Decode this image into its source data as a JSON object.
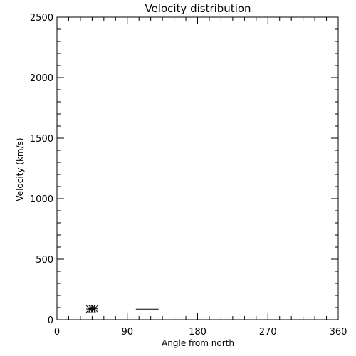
{
  "chart_data": {
    "type": "scatter",
    "title": "Velocity distribution",
    "xlabel": "Angle from north",
    "ylabel": "Velocity (km/s)",
    "xlim": [
      0,
      360
    ],
    "ylim": [
      0,
      2500
    ],
    "xticks": [
      "0",
      "90",
      "180",
      "270",
      "360"
    ],
    "yticks": [
      "0",
      "500",
      "1000",
      "1500",
      "2000",
      "2500"
    ],
    "grid": false,
    "points": [
      {
        "x": 42,
        "y": 88
      },
      {
        "x": 45,
        "y": 92
      },
      {
        "x": 48,
        "y": 90
      }
    ],
    "segments": [
      {
        "x1": 101,
        "x2": 130,
        "y": 87
      }
    ]
  }
}
